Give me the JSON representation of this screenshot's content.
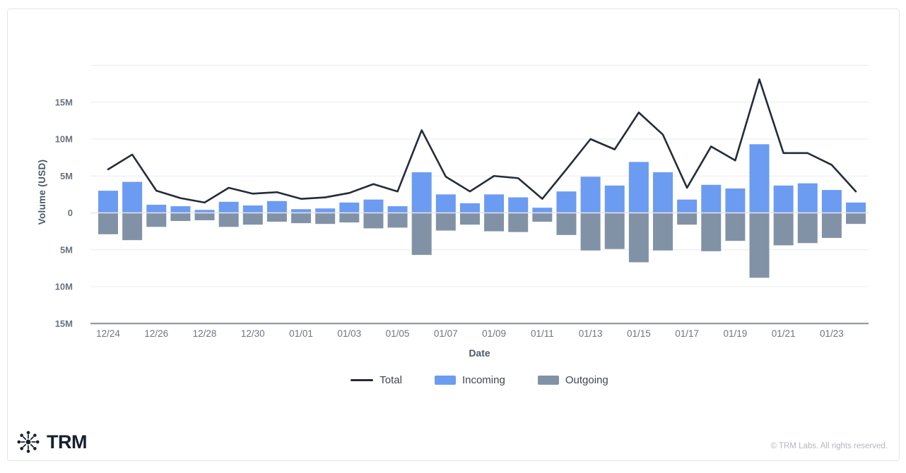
{
  "chart": {
    "y_tick_labels": [
      "15M",
      "10M",
      "5M",
      "0",
      "5M",
      "10M",
      "15M"
    ],
    "y_tick_values": [
      15,
      10,
      5,
      0,
      -5,
      -10,
      -15
    ]
  },
  "chart_data": {
    "type": "bar",
    "subtype": "diverging-bars-with-total-line",
    "title": "",
    "xlabel": "Date",
    "ylabel": "Volume (USD)",
    "unit": "M (USD)",
    "ylim": [
      -15,
      20
    ],
    "grid": true,
    "legend_position": "bottom",
    "x_tick_every": 2,
    "categories": [
      "12/24",
      "12/25",
      "12/26",
      "12/27",
      "12/28",
      "12/29",
      "12/30",
      "12/31",
      "01/01",
      "01/02",
      "01/03",
      "01/04",
      "01/05",
      "01/06",
      "01/07",
      "01/08",
      "01/09",
      "01/10",
      "01/11",
      "01/12",
      "01/13",
      "01/14",
      "01/15",
      "01/16",
      "01/17",
      "01/18",
      "01/19",
      "01/20",
      "01/21",
      "01/22",
      "01/23",
      "01/24"
    ],
    "series": [
      {
        "name": "Total",
        "type": "line",
        "color": "#232c3a",
        "values": [
          5.9,
          7.9,
          3.0,
          2.0,
          1.4,
          3.4,
          2.6,
          2.8,
          1.9,
          2.1,
          2.7,
          3.9,
          2.9,
          11.2,
          4.9,
          2.9,
          5.0,
          4.7,
          1.9,
          5.9,
          10.0,
          8.6,
          13.6,
          10.6,
          3.4,
          9.0,
          7.1,
          18.1,
          8.1,
          8.1,
          6.5,
          2.9
        ]
      },
      {
        "name": "Incoming",
        "type": "bar",
        "direction": "up",
        "color": "#6c9bf2",
        "values": [
          3.0,
          4.2,
          1.1,
          0.9,
          0.4,
          1.5,
          1.0,
          1.6,
          0.5,
          0.6,
          1.4,
          1.8,
          0.9,
          5.5,
          2.5,
          1.3,
          2.5,
          2.1,
          0.7,
          2.9,
          4.9,
          3.7,
          6.9,
          5.5,
          1.8,
          3.8,
          3.3,
          9.3,
          3.7,
          4.0,
          3.1,
          1.4
        ]
      },
      {
        "name": "Outgoing",
        "type": "bar",
        "direction": "down",
        "color": "#8292a6",
        "values": [
          2.9,
          3.7,
          1.9,
          1.1,
          1.0,
          1.9,
          1.6,
          1.2,
          1.4,
          1.5,
          1.3,
          2.1,
          2.0,
          5.7,
          2.4,
          1.6,
          2.5,
          2.6,
          1.2,
          3.0,
          5.1,
          4.9,
          6.7,
          5.1,
          1.6,
          5.2,
          3.8,
          8.8,
          4.4,
          4.1,
          3.4,
          1.5
        ]
      }
    ]
  },
  "footer": {
    "brand": "TRM",
    "copyright": "© TRM Labs. All rights reserved."
  }
}
